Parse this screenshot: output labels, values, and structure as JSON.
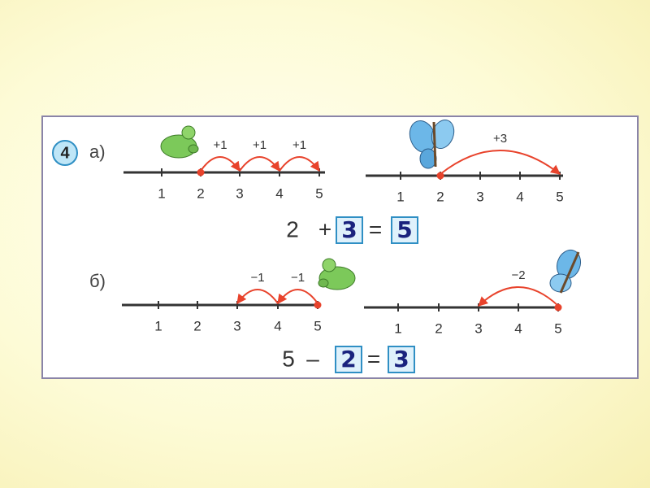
{
  "exercise": {
    "number": "4",
    "parts": [
      {
        "label": "а)",
        "lines": [
          {
            "ticks": [
              "1",
              "2",
              "3",
              "4",
              "5"
            ],
            "jumps": [
              "+1",
              "+1",
              "+1"
            ]
          },
          {
            "ticks": [
              "1",
              "2",
              "3",
              "4",
              "5"
            ],
            "jumps": [
              "+3"
            ]
          }
        ],
        "equation": [
          "2",
          "+",
          "3",
          "=",
          "5"
        ]
      },
      {
        "label": "б)",
        "lines": [
          {
            "ticks": [
              "1",
              "2",
              "3",
              "4",
              "5"
            ],
            "jumps": [
              "−1",
              "−1"
            ]
          },
          {
            "ticks": [
              "1",
              "2",
              "3",
              "4",
              "5"
            ],
            "jumps": [
              "−2"
            ]
          }
        ],
        "equation": [
          "5",
          "–",
          "2",
          "=",
          "3"
        ]
      }
    ]
  }
}
